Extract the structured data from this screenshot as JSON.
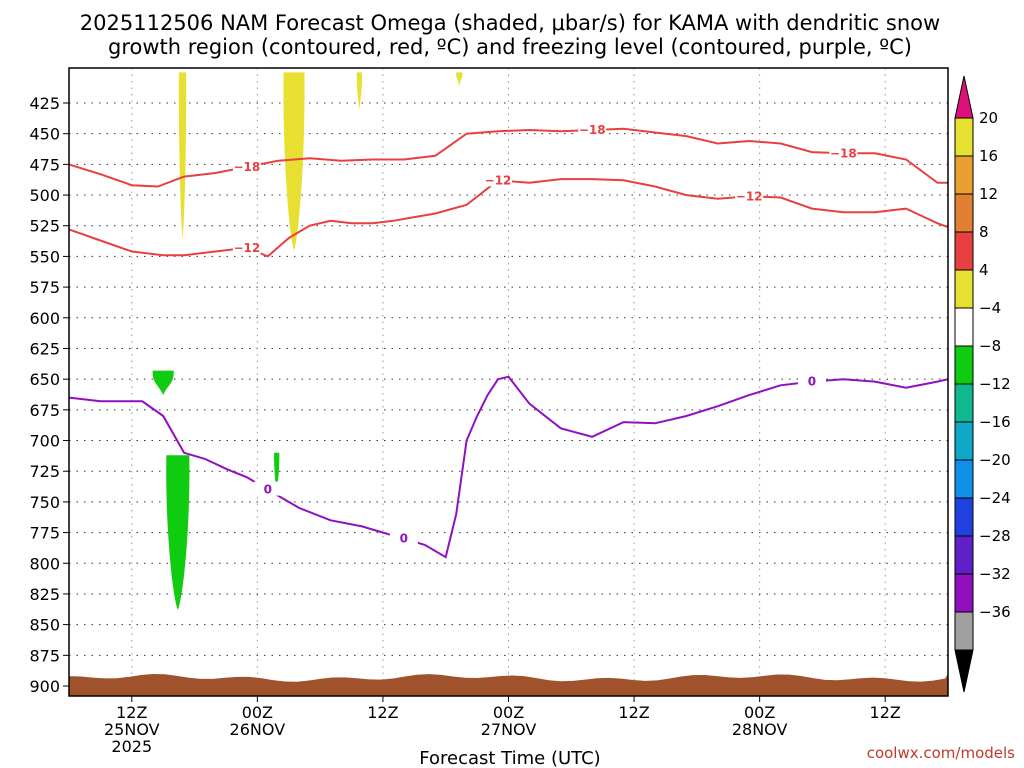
{
  "title_line1": "2025112506 NAM Forecast Omega (shaded, μbar/s) for KAMA with dendritic snow",
  "title_line2": "growth region (contoured, red, ºC) and freezing level (contoured, purple, ºC)",
  "credit": "coolwx.com/models",
  "chart_data": {
    "type": "area",
    "title": "2025112506 NAM Forecast Omega (shaded, μbar/s) for KAMA with dendritic snow growth region (contoured, red, ºC) and freezing level (contoured, purple, ºC)",
    "xlabel": "Forecast Time (UTC)",
    "ylabel": "",
    "x_hours_range": [
      0,
      84
    ],
    "y_pressure_range": [
      910,
      400
    ],
    "y_ticks": [
      425,
      450,
      475,
      500,
      525,
      550,
      575,
      600,
      625,
      650,
      675,
      700,
      725,
      750,
      775,
      800,
      825,
      850,
      875,
      900
    ],
    "x_ticks": [
      {
        "hour": 6,
        "line1": "12Z",
        "line2": "25NOV",
        "line3": "2025"
      },
      {
        "hour": 18,
        "line1": "00Z",
        "line2": "26NOV",
        "line3": ""
      },
      {
        "hour": 30,
        "line1": "12Z",
        "line2": "",
        "line3": ""
      },
      {
        "hour": 42,
        "line1": "00Z",
        "line2": "27NOV",
        "line3": ""
      },
      {
        "hour": 54,
        "line1": "12Z",
        "line2": "",
        "line3": ""
      },
      {
        "hour": 66,
        "line1": "00Z",
        "line2": "28NOV",
        "line3": ""
      },
      {
        "hour": 78,
        "line1": "12Z",
        "line2": "",
        "line3": ""
      }
    ],
    "grid": true,
    "colorbar": {
      "labels": [
        "20",
        "16",
        "12",
        "8",
        "4",
        "−4",
        "−8",
        "−12",
        "−16",
        "−20",
        "−24",
        "−28",
        "−32",
        "−36"
      ],
      "bins": [
        {
          "color": "#e8e030"
        },
        {
          "color": "#e8a030"
        },
        {
          "color": "#e08030"
        },
        {
          "color": "#e84040"
        },
        {
          "color": "#e8e030"
        },
        {
          "color": "#ffffff"
        },
        {
          "color": "#10cc10"
        },
        {
          "color": "#10b890"
        },
        {
          "color": "#10a8c8"
        },
        {
          "color": "#1090e8"
        },
        {
          "color": "#2040e0"
        },
        {
          "color": "#6020c8"
        },
        {
          "color": "#9010c0"
        },
        {
          "color": "#a0a0a0"
        }
      ],
      "top_arrow_color": "#e0107a",
      "bottom_arrow_color": "#000000"
    },
    "series": [
      {
        "label": "−18",
        "color": "#e84040",
        "x": [
          0,
          3,
          6,
          8.5,
          11,
          14,
          17,
          20,
          23,
          26,
          29,
          32,
          35,
          38,
          41,
          44,
          47,
          50,
          53,
          56,
          59,
          62,
          65,
          68,
          71,
          74,
          77,
          80,
          83,
          84
        ],
        "y": [
          475,
          483,
          492,
          493,
          485,
          482,
          477,
          472,
          470,
          472,
          471,
          471,
          468,
          450,
          448,
          447,
          448,
          447,
          446,
          449,
          452,
          458,
          456,
          458,
          465,
          466,
          466,
          471,
          490,
          490
        ]
      },
      {
        "label": "−12",
        "color": "#e84040",
        "x": [
          0,
          3,
          6,
          9,
          11,
          14,
          17,
          19,
          21,
          23,
          25,
          27,
          29,
          31,
          33,
          35,
          38,
          41,
          44,
          47,
          50,
          53,
          56,
          59,
          62,
          65,
          68,
          71,
          74,
          77,
          80,
          83,
          84
        ],
        "y": [
          528,
          537,
          546,
          549,
          549,
          546,
          543,
          550,
          535,
          525,
          521,
          523,
          523,
          521,
          518,
          515,
          508,
          488,
          490,
          487,
          487,
          488,
          493,
          500,
          503,
          501,
          502,
          511,
          514,
          514,
          511,
          523,
          526
        ]
      },
      {
        "label": "0",
        "color": "#9010c0",
        "x": [
          0,
          3,
          5,
          7,
          9,
          11,
          13,
          15,
          17,
          19,
          22,
          25,
          28,
          30,
          32,
          34,
          36,
          37,
          38,
          39,
          40,
          41,
          42,
          44,
          47,
          50,
          53,
          56,
          59,
          62,
          65,
          68,
          71,
          74,
          77,
          80,
          83,
          84
        ],
        "y": [
          665,
          668,
          668,
          668,
          680,
          710,
          715,
          723,
          730,
          740,
          755,
          765,
          770,
          775,
          780,
          785,
          795,
          760,
          700,
          680,
          663,
          650,
          648,
          670,
          690,
          697,
          685,
          686,
          680,
          672,
          663,
          655,
          652,
          650,
          652,
          657,
          652,
          650
        ]
      }
    ],
    "omega_shading": [
      {
        "value_range": "4 to 8",
        "color": "#e8e030",
        "hours": [
          10.5,
          11.2
        ],
        "pressure": [
          400,
          535
        ]
      },
      {
        "value_range": "4 to 8",
        "color": "#e8e030",
        "hours": [
          20.5,
          22.5
        ],
        "pressure": [
          400,
          545
        ]
      },
      {
        "value_range": "4 to 8",
        "color": "#e8e030",
        "hours": [
          27.5,
          28
        ],
        "pressure": [
          400,
          430
        ]
      },
      {
        "value_range": "4 to 8",
        "color": "#e8e030",
        "hours": [
          37,
          37.6
        ],
        "pressure": [
          400,
          412
        ]
      },
      {
        "value_range": "-4 to -8",
        "color": "#10cc10",
        "hours": [
          8,
          10
        ],
        "pressure": [
          643,
          663
        ]
      },
      {
        "value_range": "-4 to -8",
        "color": "#10cc10",
        "hours": [
          9.3,
          11.5
        ],
        "pressure": [
          712,
          838
        ]
      },
      {
        "value_range": "-4 to -8",
        "color": "#10cc10",
        "hours": [
          19.6,
          20.1
        ],
        "pressure": [
          710,
          742
        ]
      }
    ],
    "terrain": {
      "color": "#a0522d",
      "surface_pressure": 895
    }
  }
}
